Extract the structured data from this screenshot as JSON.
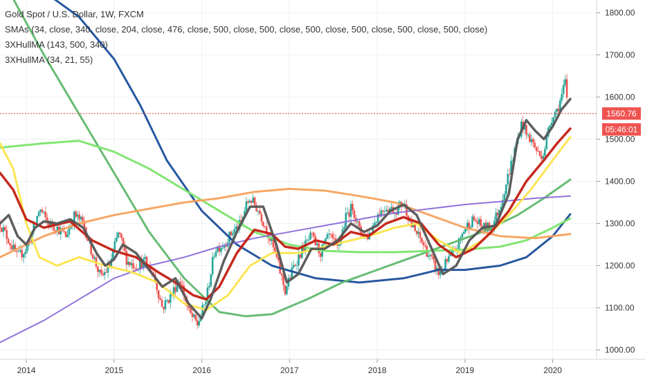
{
  "legend": {
    "title": "Gold Spot / U.S. Dollar, 1W, FXCM",
    "smas": "SMAs (34, close, 340, close, 204, close, 476, close, 500, close, 500, close, 500, close, 500, close, 500, close, 500, close)",
    "hull1": "3XHullMA (143, 500, 340)",
    "hull2": "3XHullMA (34, 21, 55)"
  },
  "colors": {
    "up": "#26a69a",
    "down": "#ef5350",
    "price_line": "#e53935",
    "badge": "#ef5350",
    "grid": "#eef0f3"
  },
  "chart_data": {
    "type": "line",
    "title": "Gold Spot / U.S. Dollar, 1W, FXCM",
    "x_ticks": [
      "2014",
      "2015",
      "2016",
      "2017",
      "2018",
      "2019",
      "2020"
    ],
    "y_ticks": [
      "1000.00",
      "1100.00",
      "1200.00",
      "1300.00",
      "1400.00",
      "1500.00",
      "1600.00",
      "1700.00",
      "1800.00"
    ],
    "xlim": [
      2013.7,
      2020.5
    ],
    "ylim": [
      978,
      1830
    ],
    "last_price": "1560.76",
    "countdown": "05:46:01",
    "grid": true,
    "price_path": [
      [
        2013.7,
        1300
      ],
      [
        2013.8,
        1260
      ],
      [
        2013.9,
        1220
      ],
      [
        2014.0,
        1240
      ],
      [
        2014.1,
        1300
      ],
      [
        2014.15,
        1335
      ],
      [
        2014.25,
        1300
      ],
      [
        2014.35,
        1290
      ],
      [
        2014.45,
        1270
      ],
      [
        2014.55,
        1320
      ],
      [
        2014.65,
        1300
      ],
      [
        2014.75,
        1230
      ],
      [
        2014.85,
        1170
      ],
      [
        2014.95,
        1200
      ],
      [
        2015.05,
        1280
      ],
      [
        2015.15,
        1210
      ],
      [
        2015.25,
        1200
      ],
      [
        2015.35,
        1210
      ],
      [
        2015.45,
        1180
      ],
      [
        2015.55,
        1100
      ],
      [
        2015.65,
        1130
      ],
      [
        2015.75,
        1170
      ],
      [
        2015.85,
        1090
      ],
      [
        2015.95,
        1060
      ],
      [
        2016.05,
        1120
      ],
      [
        2016.15,
        1240
      ],
      [
        2016.25,
        1250
      ],
      [
        2016.35,
        1280
      ],
      [
        2016.45,
        1300
      ],
      [
        2016.5,
        1340
      ],
      [
        2016.55,
        1360
      ],
      [
        2016.65,
        1330
      ],
      [
        2016.75,
        1280
      ],
      [
        2016.85,
        1220
      ],
      [
        2016.95,
        1140
      ],
      [
        2017.05,
        1200
      ],
      [
        2017.15,
        1240
      ],
      [
        2017.25,
        1270
      ],
      [
        2017.35,
        1230
      ],
      [
        2017.45,
        1270
      ],
      [
        2017.55,
        1240
      ],
      [
        2017.65,
        1320
      ],
      [
        2017.72,
        1340
      ],
      [
        2017.8,
        1280
      ],
      [
        2017.9,
        1270
      ],
      [
        2018.0,
        1320
      ],
      [
        2018.1,
        1340
      ],
      [
        2018.2,
        1330
      ],
      [
        2018.3,
        1350
      ],
      [
        2018.4,
        1290
      ],
      [
        2018.5,
        1260
      ],
      [
        2018.6,
        1220
      ],
      [
        2018.7,
        1180
      ],
      [
        2018.8,
        1210
      ],
      [
        2018.9,
        1240
      ],
      [
        2019.0,
        1290
      ],
      [
        2019.1,
        1310
      ],
      [
        2019.2,
        1290
      ],
      [
        2019.3,
        1290
      ],
      [
        2019.4,
        1340
      ],
      [
        2019.5,
        1420
      ],
      [
        2019.6,
        1500
      ],
      [
        2019.65,
        1540
      ],
      [
        2019.7,
        1510
      ],
      [
        2019.75,
        1500
      ],
      [
        2019.85,
        1460
      ],
      [
        2019.9,
        1470
      ],
      [
        2019.95,
        1520
      ],
      [
        2020.0,
        1560
      ],
      [
        2020.05,
        1570
      ],
      [
        2020.1,
        1600
      ],
      [
        2020.15,
        1640
      ],
      [
        2020.17,
        1560
      ]
    ],
    "series": [
      {
        "color": "#1a4e9a",
        "width": 3,
        "points": [
          [
            2013.7,
            1930
          ],
          [
            2014.2,
            1850
          ],
          [
            2014.6,
            1790
          ],
          [
            2015.0,
            1690
          ],
          [
            2015.3,
            1580
          ],
          [
            2015.6,
            1450
          ],
          [
            2016.0,
            1330
          ],
          [
            2016.4,
            1250
          ],
          [
            2016.8,
            1200
          ],
          [
            2017.3,
            1170
          ],
          [
            2017.8,
            1160
          ],
          [
            2018.3,
            1170
          ],
          [
            2018.7,
            1190
          ],
          [
            2019.0,
            1190
          ],
          [
            2019.4,
            1200
          ],
          [
            2019.7,
            1220
          ],
          [
            2020.0,
            1270
          ],
          [
            2020.2,
            1322
          ]
        ]
      },
      {
        "color": "#5fb86c",
        "width": 3,
        "points": [
          [
            2013.7,
            1890
          ],
          [
            2014.2,
            1700
          ],
          [
            2014.6,
            1560
          ],
          [
            2015.0,
            1420
          ],
          [
            2015.4,
            1280
          ],
          [
            2015.8,
            1170
          ],
          [
            2016.2,
            1090
          ],
          [
            2016.5,
            1080
          ],
          [
            2016.8,
            1085
          ],
          [
            2017.2,
            1120
          ],
          [
            2017.6,
            1160
          ],
          [
            2018.0,
            1190
          ],
          [
            2018.4,
            1220
          ],
          [
            2018.8,
            1250
          ],
          [
            2019.2,
            1280
          ],
          [
            2019.6,
            1320
          ],
          [
            2019.9,
            1360
          ],
          [
            2020.2,
            1404
          ]
        ]
      },
      {
        "color": "#7be46a",
        "width": 3,
        "points": [
          [
            2013.7,
            1480
          ],
          [
            2014.2,
            1490
          ],
          [
            2014.6,
            1496
          ],
          [
            2015.0,
            1470
          ],
          [
            2015.4,
            1430
          ],
          [
            2015.8,
            1380
          ],
          [
            2016.2,
            1330
          ],
          [
            2016.6,
            1280
          ],
          [
            2017.0,
            1250
          ],
          [
            2017.4,
            1235
          ],
          [
            2017.8,
            1232
          ],
          [
            2018.2,
            1232
          ],
          [
            2018.6,
            1235
          ],
          [
            2019.0,
            1238
          ],
          [
            2019.4,
            1245
          ],
          [
            2019.7,
            1260
          ],
          [
            2020.0,
            1290
          ],
          [
            2020.2,
            1312
          ]
        ]
      },
      {
        "color": "#f5a15c",
        "width": 3,
        "points": [
          [
            2013.7,
            1220
          ],
          [
            2014.2,
            1270
          ],
          [
            2014.6,
            1300
          ],
          [
            2015.0,
            1320
          ],
          [
            2015.4,
            1335
          ],
          [
            2015.8,
            1350
          ],
          [
            2016.2,
            1360
          ],
          [
            2016.6,
            1375
          ],
          [
            2017.0,
            1382
          ],
          [
            2017.4,
            1378
          ],
          [
            2017.8,
            1365
          ],
          [
            2018.2,
            1350
          ],
          [
            2018.6,
            1320
          ],
          [
            2019.0,
            1290
          ],
          [
            2019.4,
            1270
          ],
          [
            2019.8,
            1265
          ],
          [
            2020.2,
            1275
          ]
        ]
      },
      {
        "color": "#8a6ad8",
        "width": 2,
        "points": [
          [
            2013.7,
            1018
          ],
          [
            2014.2,
            1070
          ],
          [
            2014.6,
            1120
          ],
          [
            2015.0,
            1170
          ],
          [
            2015.4,
            1200
          ],
          [
            2015.8,
            1220
          ],
          [
            2016.2,
            1245
          ],
          [
            2016.6,
            1265
          ],
          [
            2017.0,
            1280
          ],
          [
            2017.4,
            1295
          ],
          [
            2017.8,
            1310
          ],
          [
            2018.2,
            1325
          ],
          [
            2018.6,
            1335
          ],
          [
            2019.0,
            1345
          ],
          [
            2019.4,
            1352
          ],
          [
            2019.8,
            1360
          ],
          [
            2020.2,
            1365
          ]
        ]
      },
      {
        "color": "#fbe44a",
        "width": 3,
        "points": [
          [
            2013.7,
            1490
          ],
          [
            2013.85,
            1430
          ],
          [
            2014.0,
            1300
          ],
          [
            2014.15,
            1220
          ],
          [
            2014.35,
            1200
          ],
          [
            2014.6,
            1220
          ],
          [
            2014.9,
            1200
          ],
          [
            2015.2,
            1185
          ],
          [
            2015.5,
            1160
          ],
          [
            2015.8,
            1110
          ],
          [
            2016.05,
            1095
          ],
          [
            2016.3,
            1130
          ],
          [
            2016.55,
            1200
          ],
          [
            2016.8,
            1230
          ],
          [
            2017.1,
            1230
          ],
          [
            2017.5,
            1250
          ],
          [
            2017.9,
            1270
          ],
          [
            2018.2,
            1290
          ],
          [
            2018.45,
            1300
          ],
          [
            2018.7,
            1260
          ],
          [
            2018.95,
            1230
          ],
          [
            2019.2,
            1260
          ],
          [
            2019.5,
            1320
          ],
          [
            2019.75,
            1380
          ],
          [
            2020.0,
            1450
          ],
          [
            2020.2,
            1505
          ]
        ]
      },
      {
        "color": "#c41e12",
        "width": 3.5,
        "points": [
          [
            2013.7,
            1420
          ],
          [
            2013.85,
            1380
          ],
          [
            2014.0,
            1310
          ],
          [
            2014.2,
            1290
          ],
          [
            2014.5,
            1305
          ],
          [
            2014.75,
            1260
          ],
          [
            2015.0,
            1235
          ],
          [
            2015.25,
            1220
          ],
          [
            2015.5,
            1185
          ],
          [
            2015.7,
            1160
          ],
          [
            2015.9,
            1130
          ],
          [
            2016.05,
            1120
          ],
          [
            2016.2,
            1150
          ],
          [
            2016.4,
            1230
          ],
          [
            2016.6,
            1285
          ],
          [
            2016.8,
            1275
          ],
          [
            2016.95,
            1245
          ],
          [
            2017.1,
            1240
          ],
          [
            2017.3,
            1260
          ],
          [
            2017.5,
            1250
          ],
          [
            2017.7,
            1280
          ],
          [
            2017.9,
            1270
          ],
          [
            2018.1,
            1300
          ],
          [
            2018.3,
            1315
          ],
          [
            2018.5,
            1300
          ],
          [
            2018.7,
            1250
          ],
          [
            2018.9,
            1220
          ],
          [
            2019.1,
            1240
          ],
          [
            2019.3,
            1280
          ],
          [
            2019.5,
            1330
          ],
          [
            2019.7,
            1400
          ],
          [
            2019.9,
            1450
          ],
          [
            2020.05,
            1490
          ],
          [
            2020.2,
            1525
          ]
        ]
      },
      {
        "color": "#555555",
        "width": 3.5,
        "points": [
          [
            2013.7,
            1300
          ],
          [
            2013.8,
            1320
          ],
          [
            2013.9,
            1270
          ],
          [
            2014.0,
            1250
          ],
          [
            2014.1,
            1290
          ],
          [
            2014.2,
            1305
          ],
          [
            2014.35,
            1300
          ],
          [
            2014.5,
            1310
          ],
          [
            2014.65,
            1290
          ],
          [
            2014.8,
            1230
          ],
          [
            2014.9,
            1200
          ],
          [
            2015.0,
            1215
          ],
          [
            2015.1,
            1250
          ],
          [
            2015.25,
            1230
          ],
          [
            2015.4,
            1190
          ],
          [
            2015.55,
            1150
          ],
          [
            2015.7,
            1170
          ],
          [
            2015.85,
            1110
          ],
          [
            2016.0,
            1075
          ],
          [
            2016.1,
            1120
          ],
          [
            2016.25,
            1210
          ],
          [
            2016.4,
            1280
          ],
          [
            2016.55,
            1340
          ],
          [
            2016.7,
            1340
          ],
          [
            2016.85,
            1250
          ],
          [
            2016.97,
            1160
          ],
          [
            2017.1,
            1180
          ],
          [
            2017.25,
            1240
          ],
          [
            2017.4,
            1240
          ],
          [
            2017.55,
            1260
          ],
          [
            2017.7,
            1300
          ],
          [
            2017.85,
            1280
          ],
          [
            2018.0,
            1295
          ],
          [
            2018.15,
            1330
          ],
          [
            2018.3,
            1345
          ],
          [
            2018.45,
            1320
          ],
          [
            2018.6,
            1250
          ],
          [
            2018.75,
            1180
          ],
          [
            2018.9,
            1200
          ],
          [
            2019.05,
            1260
          ],
          [
            2019.2,
            1290
          ],
          [
            2019.35,
            1295
          ],
          [
            2019.5,
            1370
          ],
          [
            2019.6,
            1500
          ],
          [
            2019.7,
            1545
          ],
          [
            2019.8,
            1520
          ],
          [
            2019.9,
            1500
          ],
          [
            2020.0,
            1530
          ],
          [
            2020.1,
            1570
          ],
          [
            2020.2,
            1595
          ]
        ]
      }
    ]
  }
}
